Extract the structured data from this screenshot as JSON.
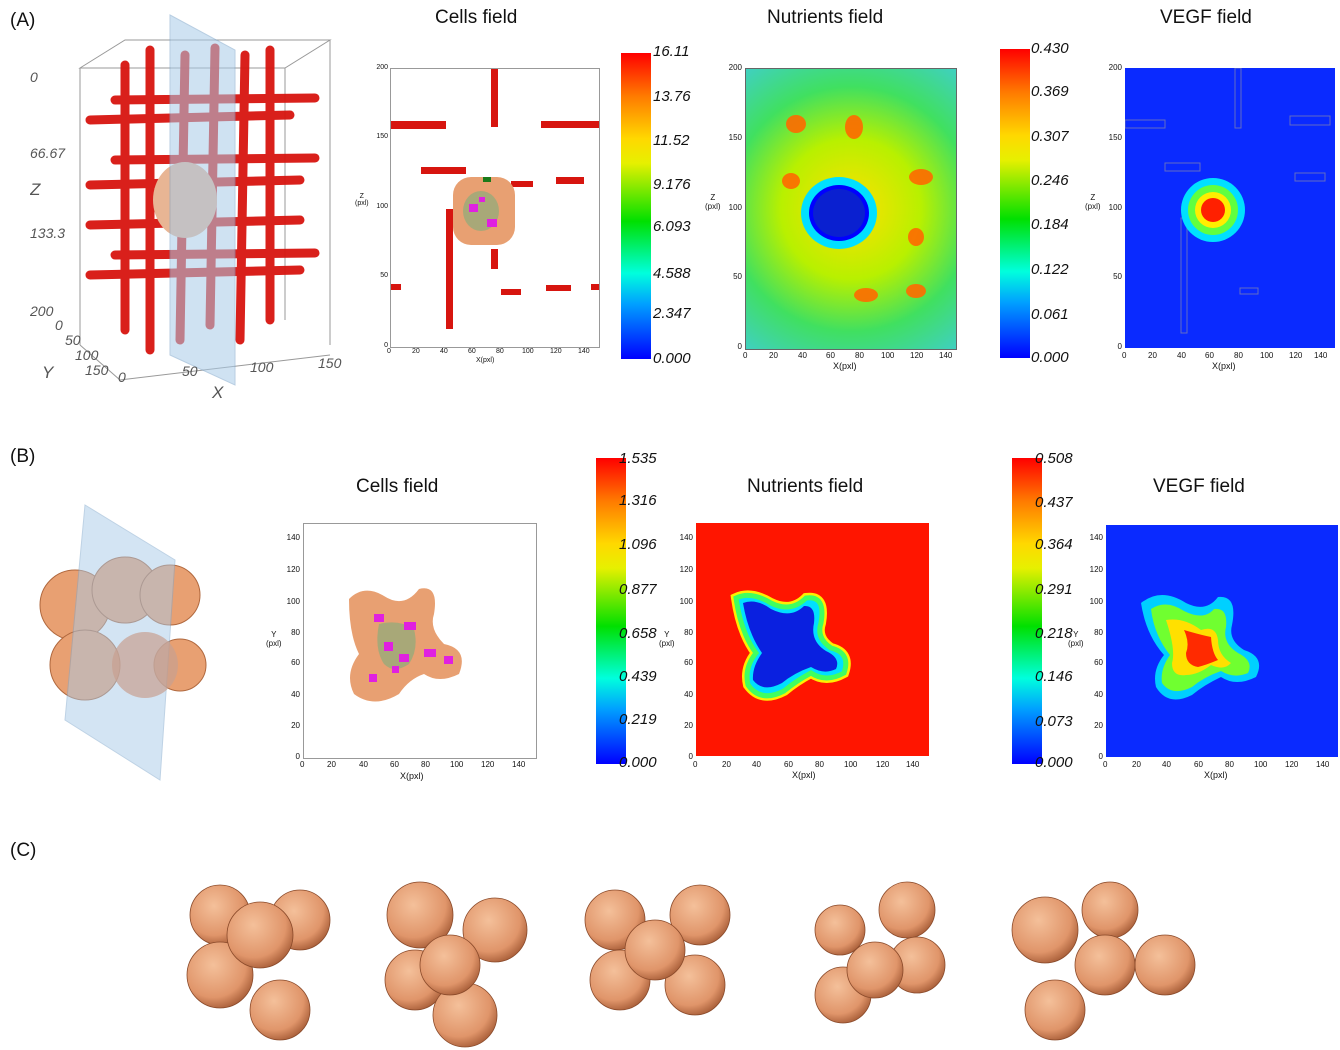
{
  "panels": {
    "A": {
      "label": "(A)",
      "view3d": {
        "z_ticks": [
          "0",
          "66.67",
          "133.3",
          "200"
        ],
        "y_ticks": [
          "0",
          "50",
          "100",
          "150"
        ],
        "x_ticks": [
          "0",
          "50",
          "100",
          "150"
        ],
        "z_axis": "Z",
        "y_axis": "Y",
        "x_axis": "X"
      },
      "cells_title": "Cells field",
      "nutrients_title": "Nutrients field",
      "vegf_title": "VEGF field",
      "cells_colorbar": [
        "16.11",
        "13.76",
        "11.52",
        "9.176",
        "6.093",
        "4.588",
        "2.347",
        "0.000"
      ],
      "nutrients_colorbar": [
        "0.430",
        "0.369",
        "0.307",
        "0.246",
        "0.184",
        "0.122",
        "0.061",
        "0.000"
      ],
      "x_ticks": [
        "0",
        "20",
        "40",
        "60",
        "80",
        "100",
        "120",
        "140"
      ],
      "y_ticks": [
        "0",
        "50",
        "100",
        "150",
        "200"
      ],
      "x_label": "X(pxl)",
      "y_label_1": "Z",
      "y_label_2": "(pxl)"
    },
    "B": {
      "label": "(B)",
      "cells_title": "Cells field",
      "nutrients_title": "Nutrients field",
      "vegf_title": "VEGF field",
      "cells_colorbar": [
        "1.535",
        "1.316",
        "1.096",
        "0.877",
        "0.658",
        "0.439",
        "0.219",
        "0.000"
      ],
      "vegf_colorbar": [
        "0.508",
        "0.437",
        "0.364",
        "0.291",
        "0.218",
        "0.146",
        "0.073",
        "0.000"
      ],
      "x_ticks": [
        "0",
        "20",
        "40",
        "60",
        "80",
        "100",
        "120",
        "140"
      ],
      "y_ticks": [
        "0",
        "20",
        "40",
        "60",
        "80",
        "100",
        "120",
        "140"
      ],
      "x_label": "X(pxl)",
      "y_label_1": "Y",
      "y_label_2": "(pxl)"
    },
    "C": {
      "label": "(C)"
    }
  },
  "colors": {
    "vessel": "#d7150f",
    "tumor": "#e8a072",
    "necrotic": "#a8a878",
    "hypoxic": "#e020e0",
    "plane": "#a9cbe8"
  }
}
